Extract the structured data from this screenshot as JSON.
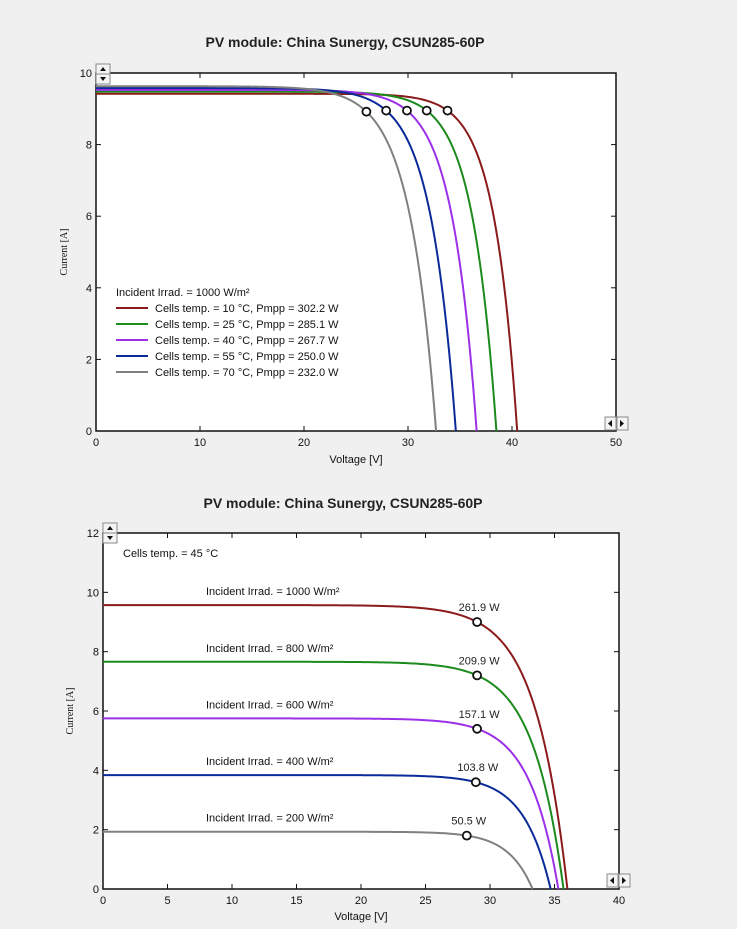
{
  "colors": {
    "t10": "#8b1a1a",
    "t25": "#1c8a1c",
    "t40": "#9b30e8",
    "t55": "#0a2a99",
    "t70": "#808080"
  },
  "chart_data": [
    {
      "type": "line",
      "title": "PV module:  China Sunergy,  CSUN285-60P",
      "xlabel": "Voltage [V]",
      "ylabel": "Current [A]",
      "xlim": [
        0,
        50
      ],
      "ylim": [
        0,
        10
      ],
      "xticks": [
        "0",
        "10",
        "20",
        "30",
        "40",
        "50"
      ],
      "yticks": [
        "0",
        "2",
        "4",
        "6",
        "8",
        "10"
      ],
      "legend_header": "Incident Irrad. = 1000 W/m²",
      "series": [
        {
          "name": "Cells temp. = 10 °C,  Pmpp = 302.2 W",
          "color_key": "t10",
          "isc": 9.42,
          "voc": 40.5,
          "vmp": 33.8,
          "imp": 8.95
        },
        {
          "name": "Cells temp. = 25 °C,  Pmpp = 285.1 W",
          "color_key": "t25",
          "isc": 9.48,
          "voc": 38.5,
          "vmp": 31.8,
          "imp": 8.95
        },
        {
          "name": "Cells temp. = 40 °C,  Pmpp = 267.7 W",
          "color_key": "t40",
          "isc": 9.53,
          "voc": 36.6,
          "vmp": 29.9,
          "imp": 8.95
        },
        {
          "name": "Cells temp. = 55 °C,  Pmpp = 250.0 W",
          "color_key": "t55",
          "isc": 9.58,
          "voc": 34.6,
          "vmp": 27.9,
          "imp": 8.95
        },
        {
          "name": "Cells temp. = 70 °C,  Pmpp = 232.0 W",
          "color_key": "t70",
          "isc": 9.63,
          "voc": 32.7,
          "vmp": 26.0,
          "imp": 8.92
        }
      ]
    },
    {
      "type": "line",
      "title": "PV module:  China Sunergy,  CSUN285-60P",
      "xlabel": "Voltage [V]",
      "ylabel": "Current [A]",
      "xlim": [
        0,
        40
      ],
      "ylim": [
        0,
        12
      ],
      "xticks": [
        "0",
        "5",
        "10",
        "15",
        "20",
        "25",
        "30",
        "35",
        "40"
      ],
      "yticks": [
        "0",
        "2",
        "4",
        "6",
        "8",
        "10",
        "12"
      ],
      "header": "Cells temp. = 45 °C",
      "series": [
        {
          "name": "Incident Irrad. = 1000 W/m²",
          "pmpp_label": "261.9 W",
          "color_key": "t10",
          "isc": 9.57,
          "voc": 36.0,
          "vmp": 29.0,
          "imp": 9.0
        },
        {
          "name": "Incident Irrad. = 800 W/m²",
          "pmpp_label": "209.9 W",
          "color_key": "t25",
          "isc": 7.66,
          "voc": 35.7,
          "vmp": 29.0,
          "imp": 7.2
        },
        {
          "name": "Incident Irrad. = 600 W/m²",
          "pmpp_label": "157.1 W",
          "color_key": "t40",
          "isc": 5.75,
          "voc": 35.3,
          "vmp": 29.0,
          "imp": 5.4
        },
        {
          "name": "Incident Irrad. = 400 W/m²",
          "pmpp_label": "103.8 W",
          "color_key": "t55",
          "isc": 3.84,
          "voc": 34.7,
          "vmp": 28.9,
          "imp": 3.6
        },
        {
          "name": "Incident Irrad. = 200 W/m²",
          "pmpp_label": "50.5 W",
          "color_key": "t70",
          "isc": 1.93,
          "voc": 33.3,
          "vmp": 28.2,
          "imp": 1.8
        }
      ]
    }
  ]
}
